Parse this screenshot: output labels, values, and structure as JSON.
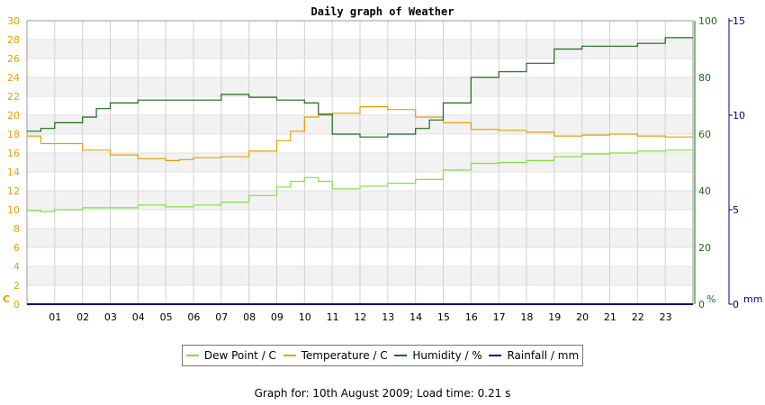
{
  "chart_data": {
    "type": "line",
    "title": "Daily graph of Weather",
    "x_ticks": [
      "01",
      "02",
      "03",
      "04",
      "05",
      "06",
      "07",
      "08",
      "09",
      "10",
      "11",
      "12",
      "13",
      "14",
      "15",
      "16",
      "17",
      "18",
      "19",
      "20",
      "21",
      "22",
      "23"
    ],
    "xlim": [
      0,
      24
    ],
    "axes": {
      "left": {
        "unit": "C",
        "ylim": [
          0,
          30
        ],
        "ticks": [
          0,
          2,
          4,
          6,
          8,
          10,
          12,
          14,
          16,
          18,
          20,
          22,
          24,
          26,
          28,
          30
        ],
        "color": "#e8a000"
      },
      "right_humidity": {
        "unit": "%",
        "ylim": [
          0,
          100
        ],
        "ticks": [
          0,
          20,
          40,
          60,
          80,
          100
        ],
        "color": "#1a6b1a"
      },
      "right_rain": {
        "unit": "mm",
        "ylim": [
          0,
          15
        ],
        "ticks": [
          0,
          5,
          10,
          15
        ],
        "color": "#00008b"
      }
    },
    "grid": true,
    "legend_position": "bottom",
    "series": [
      {
        "name": "Dew Point / C",
        "axis": "left",
        "color": "#7fe040",
        "x": [
          0,
          0.5,
          1,
          2,
          3,
          4,
          5,
          6,
          7,
          8,
          9,
          9.5,
          10,
          10.5,
          11,
          12,
          13,
          14,
          15,
          16,
          17,
          18,
          19,
          20,
          21,
          22,
          23,
          24
        ],
        "y": [
          9.9,
          9.8,
          10.0,
          10.2,
          10.2,
          10.5,
          10.3,
          10.5,
          10.8,
          11.5,
          12.4,
          13.0,
          13.4,
          13.0,
          12.2,
          12.5,
          12.8,
          13.2,
          14.2,
          14.9,
          15.0,
          15.2,
          15.6,
          15.9,
          16.0,
          16.2,
          16.3,
          16.3
        ]
      },
      {
        "name": "Temperature / C",
        "axis": "left",
        "color": "#e8a000",
        "x": [
          0,
          0.5,
          1,
          2,
          3,
          4,
          5,
          5.5,
          6,
          7,
          8,
          9,
          9.5,
          10,
          10.5,
          11,
          12,
          13,
          14,
          15,
          16,
          17,
          18,
          19,
          20,
          21,
          22,
          23,
          24
        ],
        "y": [
          17.8,
          17.0,
          17.0,
          16.3,
          15.8,
          15.4,
          15.2,
          15.3,
          15.5,
          15.6,
          16.2,
          17.3,
          18.3,
          19.8,
          20.0,
          20.2,
          20.9,
          20.6,
          19.8,
          19.2,
          18.5,
          18.4,
          18.2,
          17.8,
          17.9,
          18.0,
          17.8,
          17.7,
          17.7
        ]
      },
      {
        "name": "Humidity / %",
        "axis": "left_humidity",
        "color": "#1a6b1a",
        "x": [
          0,
          0.5,
          1,
          2,
          2.5,
          3,
          4,
          5,
          6,
          7,
          8,
          9,
          10,
          10.5,
          11,
          12,
          13,
          14,
          14.5,
          15,
          16,
          17,
          18,
          19,
          20,
          21,
          22,
          23,
          24
        ],
        "y": [
          61,
          62,
          64,
          66,
          69,
          71,
          72,
          72,
          72,
          74,
          73,
          72,
          71,
          67,
          60,
          59,
          60,
          62,
          65,
          71,
          80,
          82,
          85,
          90,
          91,
          91,
          92,
          94,
          94
        ]
      },
      {
        "name": "Rainfall / mm",
        "axis": "right_rain",
        "color": "#00008b",
        "x": [
          0,
          24
        ],
        "y": [
          0,
          0
        ]
      }
    ],
    "footer": "Graph for: 10th August 2009; Load time: 0.21 s"
  }
}
